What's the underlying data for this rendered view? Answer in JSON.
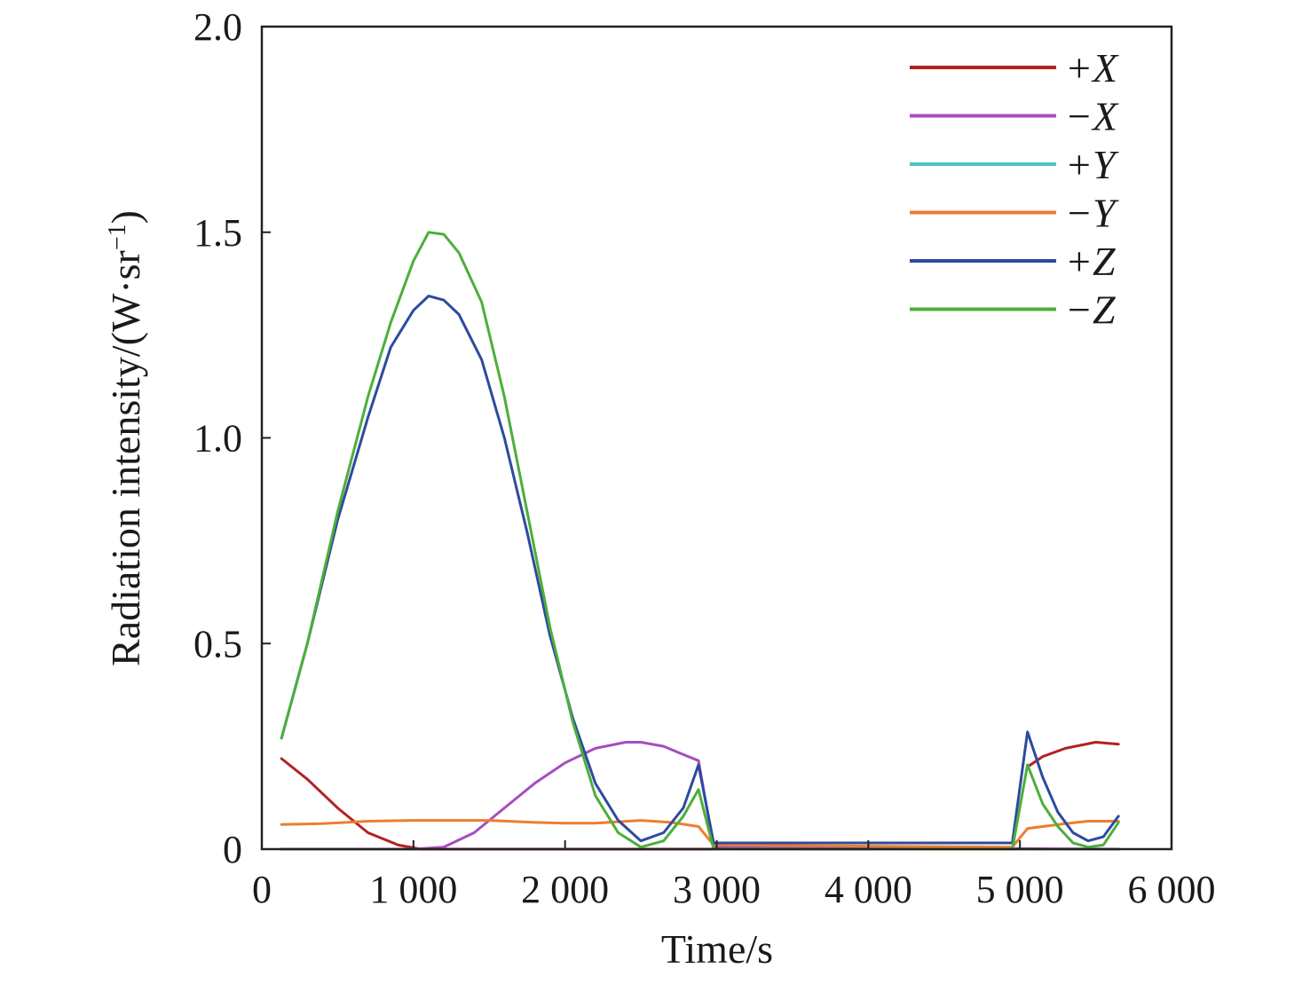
{
  "chart_data": {
    "type": "line",
    "xlabel": "Time/s",
    "ylabel": "Radiation intensity/(W·sr",
    "ylabel_sup": "−1",
    "ylabel_close": ")",
    "xlim": [
      0,
      6000
    ],
    "ylim": [
      0,
      2.0
    ],
    "x_ticks": [
      0,
      1000,
      2000,
      3000,
      4000,
      5000,
      6000
    ],
    "x_tick_labels": [
      "0",
      "1 000",
      "2 000",
      "3 000",
      "4 000",
      "5 000",
      "6 000"
    ],
    "y_ticks": [
      0,
      0.5,
      1.0,
      1.5,
      2.0
    ],
    "y_tick_labels": [
      "0",
      "0.5",
      "1.0",
      "1.5",
      "2.0"
    ],
    "grid": false,
    "legend_position": "top-right",
    "series": [
      {
        "name": "+X",
        "color": "#b22222",
        "segments": [
          [
            [
              130,
              0.22
            ],
            [
              300,
              0.17
            ],
            [
              500,
              0.1
            ],
            [
              700,
              0.04
            ],
            [
              900,
              0.01
            ],
            [
              1050,
              0.0
            ],
            [
              4950,
              0.0
            ]
          ],
          [
            [
              5050,
              0.2
            ],
            [
              5150,
              0.225
            ],
            [
              5300,
              0.245
            ],
            [
              5500,
              0.26
            ],
            [
              5650,
              0.255
            ]
          ]
        ]
      },
      {
        "name": "−X",
        "color": "#a64dbf",
        "segments": [
          [
            [
              130,
              0.0
            ],
            [
              1000,
              0.0
            ],
            [
              1200,
              0.005
            ],
            [
              1400,
              0.04
            ],
            [
              1600,
              0.1
            ],
            [
              1800,
              0.16
            ],
            [
              2000,
              0.21
            ],
            [
              2200,
              0.245
            ],
            [
              2400,
              0.26
            ],
            [
              2500,
              0.26
            ],
            [
              2650,
              0.25
            ],
            [
              2780,
              0.23
            ],
            [
              2880,
              0.215
            ],
            [
              2980,
              0.005
            ],
            [
              5650,
              0.0
            ]
          ]
        ]
      },
      {
        "name": "+Y",
        "color": "#4fc3c8",
        "segments": [
          [
            [
              130,
              0.0
            ],
            [
              5650,
              0.0
            ]
          ]
        ]
      },
      {
        "name": "−Y",
        "color": "#ed7d31",
        "segments": [
          [
            [
              130,
              0.06
            ],
            [
              400,
              0.062
            ],
            [
              700,
              0.068
            ],
            [
              1000,
              0.07
            ],
            [
              1500,
              0.07
            ],
            [
              1800,
              0.065
            ],
            [
              2000,
              0.063
            ],
            [
              2200,
              0.063
            ],
            [
              2500,
              0.07
            ],
            [
              2700,
              0.065
            ],
            [
              2880,
              0.055
            ],
            [
              2980,
              0.01
            ],
            [
              4950,
              0.005
            ],
            [
              5050,
              0.05
            ],
            [
              5300,
              0.062
            ],
            [
              5450,
              0.068
            ],
            [
              5650,
              0.068
            ]
          ]
        ]
      },
      {
        "name": "+Z",
        "color": "#2e4a9e",
        "segments": [
          [
            [
              130,
              0.27
            ],
            [
              300,
              0.5
            ],
            [
              500,
              0.8
            ],
            [
              700,
              1.05
            ],
            [
              850,
              1.22
            ],
            [
              1000,
              1.31
            ],
            [
              1100,
              1.345
            ],
            [
              1200,
              1.335
            ],
            [
              1300,
              1.3
            ],
            [
              1450,
              1.19
            ],
            [
              1600,
              1.0
            ],
            [
              1750,
              0.77
            ],
            [
              1900,
              0.52
            ],
            [
              2050,
              0.32
            ],
            [
              2200,
              0.16
            ],
            [
              2350,
              0.07
            ],
            [
              2500,
              0.02
            ],
            [
              2650,
              0.04
            ],
            [
              2780,
              0.1
            ],
            [
              2880,
              0.205
            ],
            [
              2980,
              0.015
            ],
            [
              4950,
              0.015
            ],
            [
              5050,
              0.285
            ],
            [
              5150,
              0.175
            ],
            [
              5250,
              0.09
            ],
            [
              5350,
              0.04
            ],
            [
              5450,
              0.02
            ],
            [
              5550,
              0.03
            ],
            [
              5650,
              0.08
            ]
          ]
        ]
      },
      {
        "name": "−Z",
        "color": "#4caf3a",
        "segments": [
          [
            [
              130,
              0.27
            ],
            [
              300,
              0.5
            ],
            [
              500,
              0.82
            ],
            [
              700,
              1.1
            ],
            [
              850,
              1.28
            ],
            [
              1000,
              1.43
            ],
            [
              1100,
              1.5
            ],
            [
              1200,
              1.495
            ],
            [
              1300,
              1.45
            ],
            [
              1450,
              1.33
            ],
            [
              1600,
              1.1
            ],
            [
              1750,
              0.82
            ],
            [
              1900,
              0.54
            ],
            [
              2050,
              0.31
            ],
            [
              2200,
              0.13
            ],
            [
              2350,
              0.04
            ],
            [
              2500,
              0.005
            ],
            [
              2650,
              0.02
            ],
            [
              2780,
              0.08
            ],
            [
              2880,
              0.145
            ],
            [
              2980,
              0.0
            ],
            [
              4950,
              0.0
            ],
            [
              5050,
              0.205
            ],
            [
              5150,
              0.11
            ],
            [
              5250,
              0.055
            ],
            [
              5350,
              0.015
            ],
            [
              5450,
              0.005
            ],
            [
              5550,
              0.01
            ],
            [
              5650,
              0.065
            ]
          ]
        ]
      }
    ]
  }
}
